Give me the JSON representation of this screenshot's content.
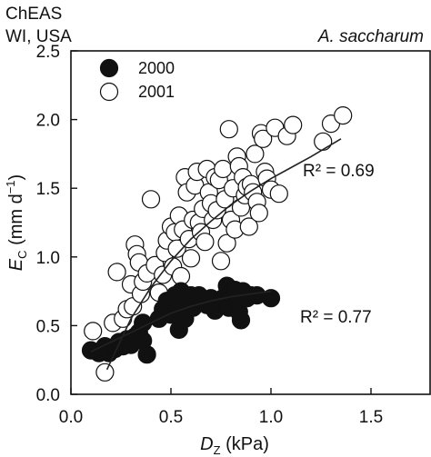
{
  "chart_data": {
    "type": "scatter",
    "title": "",
    "site_label": [
      "ChEAS",
      "WI, USA"
    ],
    "species_label": "A. saccharum",
    "xlabel": {
      "symbol": "D",
      "subscript": "Z",
      "unit": " (kPa)"
    },
    "ylabel": {
      "symbol": "E",
      "subscript": "C",
      "unit_open": " (mm d",
      "unit_sup": "−1",
      "unit_close": ")"
    },
    "xlim": [
      0.0,
      1.8
    ],
    "ylim": [
      0.0,
      2.5
    ],
    "xticks": [
      "0.0",
      "0.5",
      "1.0",
      "1.5"
    ],
    "yticks": [
      "0.0",
      "0.5",
      "1.0",
      "1.5",
      "2.0",
      "2.5"
    ],
    "grid": false,
    "legend_position": "top-left",
    "colors": {
      "filled": "#111111",
      "open_fill": "#ffffff",
      "outline": "#111111",
      "fit_line": "#222222"
    },
    "series": [
      {
        "name": "2000",
        "marker": "filled-circle",
        "r2": "R² = 0.77",
        "fit": [
          [
            0.1,
            0.31
          ],
          [
            0.2,
            0.38
          ],
          [
            0.3,
            0.45
          ],
          [
            0.4,
            0.52
          ],
          [
            0.5,
            0.59
          ],
          [
            0.6,
            0.64
          ],
          [
            0.7,
            0.68
          ],
          [
            0.8,
            0.71
          ],
          [
            0.9,
            0.73
          ],
          [
            1.0,
            0.75
          ]
        ],
        "points": [
          [
            0.1,
            0.32
          ],
          [
            0.14,
            0.3
          ],
          [
            0.17,
            0.35
          ],
          [
            0.19,
            0.3
          ],
          [
            0.22,
            0.33
          ],
          [
            0.24,
            0.38
          ],
          [
            0.26,
            0.35
          ],
          [
            0.28,
            0.4
          ],
          [
            0.3,
            0.36
          ],
          [
            0.32,
            0.42
          ],
          [
            0.34,
            0.45
          ],
          [
            0.36,
            0.39
          ],
          [
            0.38,
            0.29
          ],
          [
            0.36,
            0.52
          ],
          [
            0.44,
            0.55
          ],
          [
            0.46,
            0.62
          ],
          [
            0.48,
            0.68
          ],
          [
            0.5,
            0.58
          ],
          [
            0.52,
            0.72
          ],
          [
            0.53,
            0.62
          ],
          [
            0.55,
            0.75
          ],
          [
            0.56,
            0.66
          ],
          [
            0.57,
            0.55
          ],
          [
            0.58,
            0.7
          ],
          [
            0.6,
            0.72
          ],
          [
            0.61,
            0.63
          ],
          [
            0.62,
            0.67
          ],
          [
            0.54,
            0.47
          ],
          [
            0.64,
            0.72
          ],
          [
            0.66,
            0.68
          ],
          [
            0.68,
            0.65
          ],
          [
            0.7,
            0.7
          ],
          [
            0.72,
            0.61
          ],
          [
            0.74,
            0.67
          ],
          [
            0.76,
            0.7
          ],
          [
            0.78,
            0.79
          ],
          [
            0.79,
            0.63
          ],
          [
            0.8,
            0.74
          ],
          [
            0.82,
            0.76
          ],
          [
            0.83,
            0.68
          ],
          [
            0.84,
            0.6
          ],
          [
            0.85,
            0.54
          ],
          [
            0.86,
            0.75
          ],
          [
            0.88,
            0.7
          ],
          [
            0.9,
            0.72
          ],
          [
            0.93,
            0.72
          ],
          [
            1.0,
            0.7
          ]
        ]
      },
      {
        "name": "2001",
        "marker": "open-circle",
        "r2": "R² = 0.69",
        "fit": [
          [
            0.18,
            0.18
          ],
          [
            0.3,
            0.55
          ],
          [
            0.4,
            0.78
          ],
          [
            0.5,
            0.97
          ],
          [
            0.6,
            1.13
          ],
          [
            0.7,
            1.26
          ],
          [
            0.8,
            1.38
          ],
          [
            0.9,
            1.48
          ],
          [
            1.0,
            1.57
          ],
          [
            1.1,
            1.65
          ],
          [
            1.2,
            1.73
          ],
          [
            1.35,
            1.86
          ]
        ],
        "points": [
          [
            0.11,
            0.46
          ],
          [
            0.17,
            0.16
          ],
          [
            0.21,
            0.52
          ],
          [
            0.23,
            0.89
          ],
          [
            0.26,
            0.55
          ],
          [
            0.28,
            0.62
          ],
          [
            0.3,
            0.8
          ],
          [
            0.31,
            0.64
          ],
          [
            0.32,
            1.09
          ],
          [
            0.33,
            1.02
          ],
          [
            0.34,
            0.96
          ],
          [
            0.35,
            0.73
          ],
          [
            0.36,
            0.82
          ],
          [
            0.38,
            0.88
          ],
          [
            0.4,
            1.42
          ],
          [
            0.42,
            0.94
          ],
          [
            0.44,
            0.74
          ],
          [
            0.46,
            0.87
          ],
          [
            0.47,
            1.03
          ],
          [
            0.48,
            1.12
          ],
          [
            0.5,
            1.22
          ],
          [
            0.51,
            0.93
          ],
          [
            0.52,
            1.18
          ],
          [
            0.53,
            1.06
          ],
          [
            0.54,
            1.3
          ],
          [
            0.55,
            0.86
          ],
          [
            0.56,
            1.2
          ],
          [
            0.57,
            1.58
          ],
          [
            0.58,
            1.47
          ],
          [
            0.59,
            1.13
          ],
          [
            0.6,
            0.99
          ],
          [
            0.61,
            1.27
          ],
          [
            0.62,
            1.52
          ],
          [
            0.63,
            1.62
          ],
          [
            0.64,
            1.25
          ],
          [
            0.65,
            1.18
          ],
          [
            0.66,
            1.35
          ],
          [
            0.67,
            1.11
          ],
          [
            0.68,
            1.64
          ],
          [
            0.69,
            1.47
          ],
          [
            0.7,
            1.39
          ],
          [
            0.71,
            1.27
          ],
          [
            0.72,
            1.58
          ],
          [
            0.73,
            1.34
          ],
          [
            0.74,
            1.56
          ],
          [
            0.75,
            0.97
          ],
          [
            0.76,
            1.64
          ],
          [
            0.77,
            1.42
          ],
          [
            0.78,
            1.1
          ],
          [
            0.79,
            1.93
          ],
          [
            0.8,
            1.27
          ],
          [
            0.81,
            1.5
          ],
          [
            0.82,
            1.2
          ],
          [
            0.83,
            1.73
          ],
          [
            0.84,
            1.66
          ],
          [
            0.85,
            1.36
          ],
          [
            0.86,
            1.58
          ],
          [
            0.87,
            1.45
          ],
          [
            0.88,
            1.51
          ],
          [
            0.89,
            1.22
          ],
          [
            0.9,
            1.53
          ],
          [
            0.91,
            1.47
          ],
          [
            0.92,
            1.75
          ],
          [
            0.93,
            1.4
          ],
          [
            0.94,
            1.32
          ],
          [
            0.95,
            1.9
          ],
          [
            0.96,
            1.86
          ],
          [
            0.97,
            1.62
          ],
          [
            0.98,
            1.57
          ],
          [
            1.0,
            1.49
          ],
          [
            1.02,
            1.94
          ],
          [
            1.04,
            1.46
          ],
          [
            1.08,
            1.88
          ],
          [
            1.11,
            1.96
          ],
          [
            1.26,
            1.84
          ],
          [
            1.3,
            1.97
          ],
          [
            1.36,
            2.03
          ]
        ]
      }
    ]
  }
}
